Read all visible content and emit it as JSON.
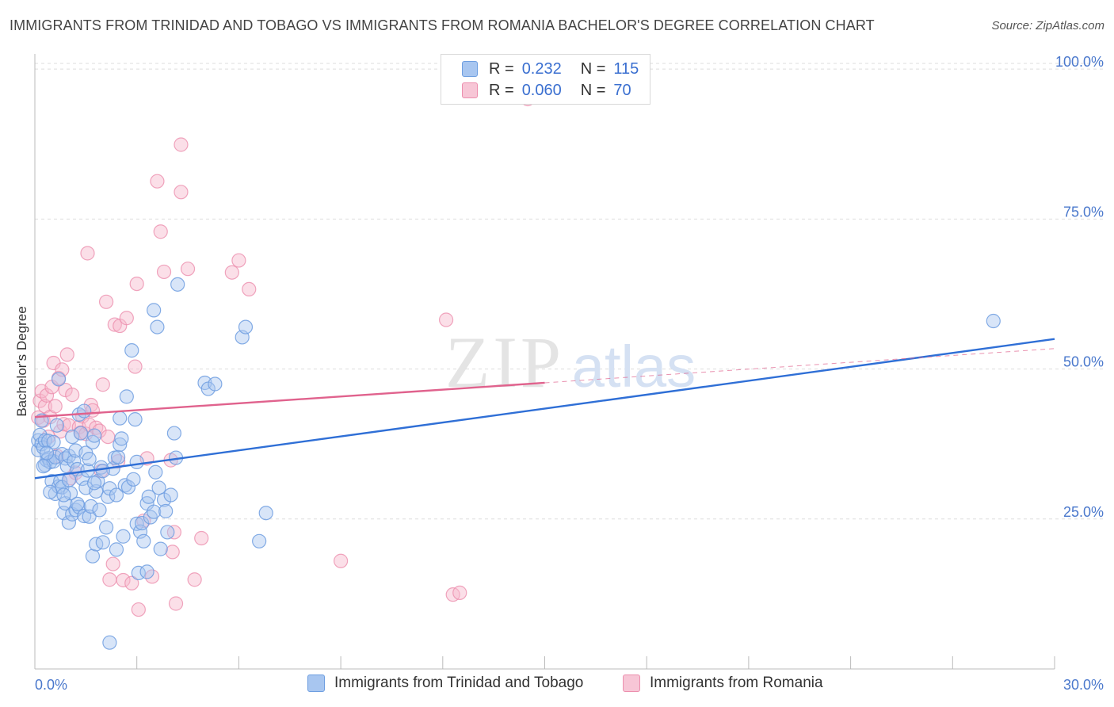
{
  "title": "IMMIGRANTS FROM TRINIDAD AND TOBAGO VS IMMIGRANTS FROM ROMANIA BACHELOR'S DEGREE CORRELATION CHART",
  "source": "Source: ZipAtlas.com",
  "watermark": {
    "zip": "ZIP",
    "atlas": "atlas"
  },
  "legend": {
    "r_label": "R =",
    "n_label": "N =",
    "rows": [
      {
        "r": "0.232",
        "n": "115"
      },
      {
        "r": "0.060",
        "n": "70"
      }
    ]
  },
  "colors": {
    "blue_fill": "#a8c6f0",
    "blue_stroke": "#6e9ee0",
    "blue_line": "#2f6fd6",
    "pink_fill": "#f7b9cd",
    "pink_stroke": "#ec8fae",
    "pink_line": "#e0628d",
    "axis_label": "#4a78cc",
    "grid": "#dddddd"
  },
  "chart_data": {
    "type": "scatter",
    "title": "IMMIGRANTS FROM TRINIDAD AND TOBAGO VS IMMIGRANTS FROM ROMANIA BACHELOR'S DEGREE CORRELATION CHART",
    "xlabel": "",
    "ylabel": "Bachelor's Degree",
    "xlim": [
      0,
      30
    ],
    "ylim": [
      0,
      102
    ],
    "x_tick_labels": [
      "0.0%",
      "30.0%"
    ],
    "y_ticks": [
      25,
      50,
      75,
      100
    ],
    "y_tick_labels": [
      "25.0%",
      "50.0%",
      "75.0%",
      "100.0%"
    ],
    "series": [
      {
        "name": "Immigrants from Trinidad and Tobago",
        "color": "blue",
        "R": 0.232,
        "N": 115,
        "trend": {
          "x": [
            0,
            30
          ],
          "y": [
            31.8,
            55.0
          ]
        },
        "points": [
          [
            0.1,
            36.5
          ],
          [
            0.1,
            38.1
          ],
          [
            0.15,
            39.0
          ],
          [
            0.2,
            37.5
          ],
          [
            0.2,
            41.4
          ],
          [
            0.25,
            36.9
          ],
          [
            0.3,
            34.0
          ],
          [
            0.3,
            38.1
          ],
          [
            0.35,
            34.8
          ],
          [
            0.4,
            35.1
          ],
          [
            0.4,
            38.0
          ],
          [
            0.45,
            34.5
          ],
          [
            0.5,
            31.3
          ],
          [
            0.55,
            34.6
          ],
          [
            0.6,
            29.2
          ],
          [
            0.6,
            35.3
          ],
          [
            0.65,
            40.6
          ],
          [
            0.7,
            30.4
          ],
          [
            0.7,
            48.3
          ],
          [
            0.75,
            31.3
          ],
          [
            0.8,
            35.8
          ],
          [
            0.8,
            30.3
          ],
          [
            0.85,
            26.0
          ],
          [
            0.9,
            27.6
          ],
          [
            0.9,
            35.1
          ],
          [
            0.95,
            33.8
          ],
          [
            1.0,
            24.4
          ],
          [
            1.0,
            35.5
          ],
          [
            1.05,
            29.3
          ],
          [
            1.1,
            25.8
          ],
          [
            1.1,
            38.7
          ],
          [
            1.15,
            34.6
          ],
          [
            1.2,
            26.5
          ],
          [
            1.2,
            36.4
          ],
          [
            1.25,
            33.3
          ],
          [
            1.3,
            42.4
          ],
          [
            1.3,
            27.0
          ],
          [
            1.35,
            39.3
          ],
          [
            1.4,
            31.7
          ],
          [
            1.45,
            25.5
          ],
          [
            1.5,
            36.0
          ],
          [
            1.5,
            30.2
          ],
          [
            1.55,
            33.1
          ],
          [
            1.6,
            25.4
          ],
          [
            1.65,
            27.1
          ],
          [
            1.7,
            37.8
          ],
          [
            1.7,
            18.8
          ],
          [
            1.75,
            38.9
          ],
          [
            1.8,
            29.6
          ],
          [
            1.8,
            20.8
          ],
          [
            1.85,
            31.3
          ],
          [
            1.9,
            26.5
          ],
          [
            1.95,
            33.6
          ],
          [
            2.0,
            21.1
          ],
          [
            2.1,
            23.6
          ],
          [
            2.15,
            28.7
          ],
          [
            2.2,
            30.1
          ],
          [
            2.2,
            4.4
          ],
          [
            2.3,
            33.4
          ],
          [
            2.35,
            35.2
          ],
          [
            2.4,
            19.9
          ],
          [
            2.45,
            35.3
          ],
          [
            2.5,
            41.8
          ],
          [
            2.5,
            37.4
          ],
          [
            2.55,
            38.4
          ],
          [
            2.6,
            22.1
          ],
          [
            2.65,
            30.6
          ],
          [
            2.7,
            45.4
          ],
          [
            2.75,
            30.3
          ],
          [
            2.85,
            53.1
          ],
          [
            2.9,
            31.6
          ],
          [
            2.95,
            41.6
          ],
          [
            3.0,
            24.2
          ],
          [
            3.05,
            16.0
          ],
          [
            3.1,
            22.9
          ],
          [
            3.15,
            24.3
          ],
          [
            3.2,
            21.3
          ],
          [
            3.3,
            27.6
          ],
          [
            3.3,
            16.2
          ],
          [
            3.35,
            28.7
          ],
          [
            3.4,
            25.3
          ],
          [
            3.5,
            59.8
          ],
          [
            3.5,
            26.2
          ],
          [
            3.55,
            32.8
          ],
          [
            3.6,
            57.0
          ],
          [
            3.65,
            30.2
          ],
          [
            3.7,
            20.0
          ],
          [
            3.8,
            28.2
          ],
          [
            3.85,
            26.3
          ],
          [
            3.9,
            22.8
          ],
          [
            4.0,
            29.0
          ],
          [
            4.1,
            39.3
          ],
          [
            4.15,
            35.2
          ],
          [
            4.2,
            64.1
          ],
          [
            5.0,
            47.7
          ],
          [
            5.1,
            46.7
          ],
          [
            5.3,
            47.5
          ],
          [
            6.1,
            55.3
          ],
          [
            6.2,
            57.0
          ],
          [
            6.6,
            21.3
          ],
          [
            6.8,
            26.0
          ],
          [
            28.2,
            58.0
          ],
          [
            1.45,
            43.0
          ],
          [
            0.55,
            37.8
          ],
          [
            2.0,
            33.0
          ],
          [
            1.0,
            31.5
          ],
          [
            0.25,
            33.8
          ],
          [
            0.85,
            29.0
          ],
          [
            1.6,
            35.0
          ],
          [
            0.35,
            36.0
          ],
          [
            3.0,
            34.5
          ],
          [
            1.75,
            31.0
          ],
          [
            2.4,
            29.0
          ],
          [
            0.45,
            29.5
          ],
          [
            1.25,
            27.5
          ]
        ]
      },
      {
        "name": "Immigrants from Romania",
        "color": "pink",
        "R": 0.06,
        "N": 70,
        "trend": {
          "x": [
            0,
            15
          ],
          "y": [
            42.0,
            47.7
          ]
        },
        "trend_dashed": {
          "x": [
            15,
            30
          ],
          "y": [
            47.7,
            53.4
          ]
        },
        "points": [
          [
            0.1,
            41.9
          ],
          [
            0.15,
            44.7
          ],
          [
            0.2,
            46.3
          ],
          [
            0.25,
            41.4
          ],
          [
            0.3,
            43.8
          ],
          [
            0.35,
            45.6
          ],
          [
            0.4,
            38.7
          ],
          [
            0.45,
            42.0
          ],
          [
            0.5,
            47.0
          ],
          [
            0.55,
            51.0
          ],
          [
            0.6,
            43.8
          ],
          [
            0.7,
            48.5
          ],
          [
            0.75,
            39.6
          ],
          [
            0.8,
            49.9
          ],
          [
            0.85,
            40.8
          ],
          [
            0.9,
            46.5
          ],
          [
            0.95,
            52.4
          ],
          [
            1.0,
            40.6
          ],
          [
            1.05,
            31.8
          ],
          [
            1.1,
            45.7
          ],
          [
            1.2,
            32.7
          ],
          [
            1.3,
            40.3
          ],
          [
            1.35,
            39.4
          ],
          [
            1.4,
            42.1
          ],
          [
            1.5,
            39.2
          ],
          [
            1.55,
            69.3
          ],
          [
            1.6,
            40.7
          ],
          [
            1.65,
            44.0
          ],
          [
            1.7,
            43.1
          ],
          [
            1.8,
            40.2
          ],
          [
            1.9,
            39.7
          ],
          [
            1.95,
            33.0
          ],
          [
            2.0,
            47.4
          ],
          [
            2.1,
            61.2
          ],
          [
            2.15,
            38.7
          ],
          [
            2.2,
            14.9
          ],
          [
            2.3,
            17.5
          ],
          [
            2.35,
            57.4
          ],
          [
            2.45,
            34.6
          ],
          [
            2.5,
            57.2
          ],
          [
            2.6,
            14.8
          ],
          [
            2.7,
            58.5
          ],
          [
            2.85,
            14.3
          ],
          [
            2.95,
            50.4
          ],
          [
            3.0,
            64.2
          ],
          [
            3.05,
            9.9
          ],
          [
            3.2,
            24.7
          ],
          [
            3.3,
            35.1
          ],
          [
            3.45,
            15.4
          ],
          [
            3.6,
            81.3
          ],
          [
            3.7,
            72.9
          ],
          [
            3.8,
            66.2
          ],
          [
            4.0,
            34.8
          ],
          [
            4.05,
            19.5
          ],
          [
            4.1,
            22.8
          ],
          [
            4.15,
            10.9
          ],
          [
            4.3,
            79.5
          ],
          [
            4.3,
            87.4
          ],
          [
            4.5,
            66.7
          ],
          [
            4.7,
            14.9
          ],
          [
            4.9,
            21.8
          ],
          [
            5.8,
            66.1
          ],
          [
            6.0,
            68.1
          ],
          [
            6.3,
            63.3
          ],
          [
            9.0,
            18.0
          ],
          [
            12.1,
            58.2
          ],
          [
            12.3,
            12.4
          ],
          [
            12.5,
            12.7
          ],
          [
            14.5,
            95.0
          ],
          [
            0.65,
            35.5
          ]
        ]
      }
    ]
  },
  "bottom_legend": [
    {
      "label": "Immigrants from Trinidad and Tobago"
    },
    {
      "label": "Immigrants from Romania"
    }
  ]
}
